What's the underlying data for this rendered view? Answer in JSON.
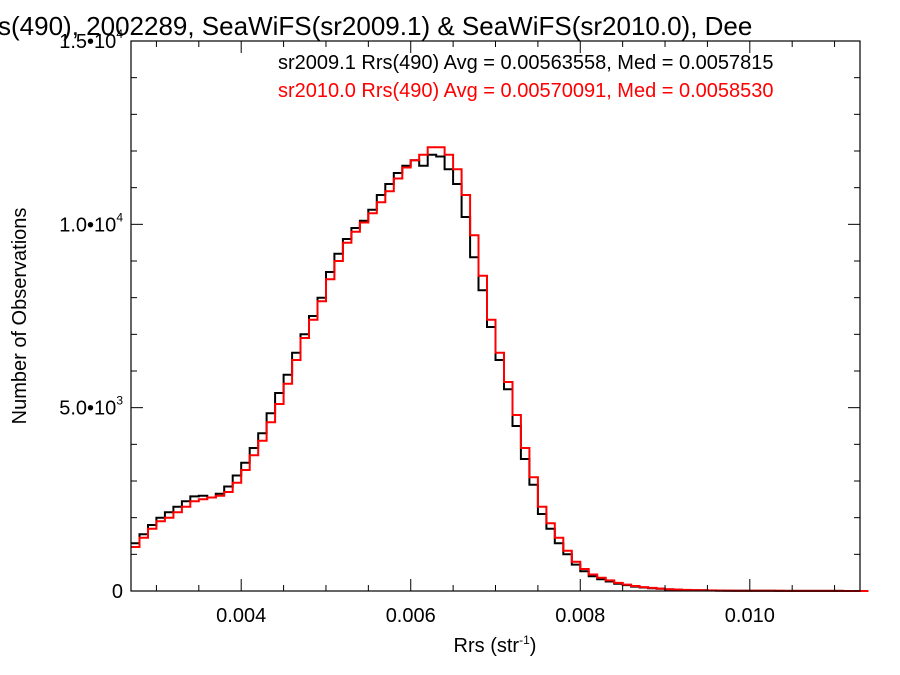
{
  "chart_data": {
    "type": "line",
    "title": "s(490), 2002289, SeaWiFS(sr2009.1) & SeaWiFS(sr2010.0), Dee",
    "xlabel": "Rrs (str",
    "xlabel_superscript": "-1",
    "xlabel_suffix": ")",
    "ylabel": "Number of Observations",
    "xlim": [
      0.0027,
      0.0113
    ],
    "ylim": [
      0,
      15000
    ],
    "xticks": [
      {
        "value": 0.004,
        "label": "0.004"
      },
      {
        "value": 0.006,
        "label": "0.006"
      },
      {
        "value": 0.008,
        "label": "0.008"
      },
      {
        "value": 0.01,
        "label": "0.010"
      }
    ],
    "yticks": [
      {
        "value": 0,
        "label": "0",
        "exp": ""
      },
      {
        "value": 5000,
        "label": "5.0•10",
        "exp": "3"
      },
      {
        "value": 10000,
        "label": "1.0•10",
        "exp": "4"
      },
      {
        "value": 15000,
        "label": "1.5•10",
        "exp": "4"
      }
    ],
    "grid": false,
    "series": [
      {
        "name": "sr2009.1 Rrs(490) Avg = 0.00563558, Med = 0.0057815",
        "color": "#000000",
        "x": [
          0.0027,
          0.0028,
          0.0029,
          0.003,
          0.0031,
          0.0032,
          0.0033,
          0.0034,
          0.0035,
          0.0036,
          0.0037,
          0.0038,
          0.0039,
          0.004,
          0.0041,
          0.0042,
          0.0043,
          0.0044,
          0.0045,
          0.0046,
          0.0047,
          0.0048,
          0.0049,
          0.005,
          0.0051,
          0.0052,
          0.0053,
          0.0054,
          0.0055,
          0.0056,
          0.0057,
          0.0058,
          0.0059,
          0.006,
          0.0061,
          0.0062,
          0.0063,
          0.0064,
          0.0065,
          0.0066,
          0.0067,
          0.0068,
          0.0069,
          0.007,
          0.0071,
          0.0072,
          0.0073,
          0.0074,
          0.0075,
          0.0076,
          0.0077,
          0.0078,
          0.0079,
          0.008,
          0.0081,
          0.0082,
          0.0083,
          0.0084,
          0.0085,
          0.0086,
          0.0087,
          0.0088,
          0.0089,
          0.009,
          0.0091,
          0.0092,
          0.0093,
          0.0094,
          0.0095,
          0.0096,
          0.0097,
          0.0098,
          0.0099,
          0.01,
          0.0101,
          0.0102,
          0.0103,
          0.0104,
          0.0105,
          0.0106,
          0.0107,
          0.0108,
          0.0109,
          0.011,
          0.0111,
          0.0112,
          0.0113
        ],
        "values": [
          1300,
          1550,
          1800,
          2000,
          2150,
          2300,
          2450,
          2580,
          2600,
          2550,
          2650,
          2850,
          3150,
          3500,
          3900,
          4300,
          4850,
          5400,
          5900,
          6500,
          7000,
          7500,
          8000,
          8700,
          9200,
          9600,
          9900,
          10100,
          10400,
          10800,
          11100,
          11400,
          11600,
          11750,
          11600,
          11900,
          11850,
          11500,
          11100,
          10200,
          9100,
          8200,
          7200,
          6300,
          5500,
          4500,
          3600,
          2900,
          2100,
          1700,
          1300,
          1000,
          720,
          540,
          400,
          320,
          260,
          200,
          160,
          120,
          95,
          75,
          60,
          45,
          35,
          28,
          22,
          18,
          14,
          11,
          9,
          8,
          7,
          6,
          5,
          5,
          4,
          4,
          3,
          3,
          2,
          2,
          2,
          2,
          1,
          1,
          0
        ]
      },
      {
        "name": "sr2010.0 Rrs(490) Avg = 0.00570091, Med = 0.0058530",
        "color": "#ff0000",
        "x": [
          0.0027,
          0.0028,
          0.0029,
          0.003,
          0.0031,
          0.0032,
          0.0033,
          0.0034,
          0.0035,
          0.0036,
          0.0037,
          0.0038,
          0.0039,
          0.004,
          0.0041,
          0.0042,
          0.0043,
          0.0044,
          0.0045,
          0.0046,
          0.0047,
          0.0048,
          0.0049,
          0.005,
          0.0051,
          0.0052,
          0.0053,
          0.0054,
          0.0055,
          0.0056,
          0.0057,
          0.0058,
          0.0059,
          0.006,
          0.0061,
          0.0062,
          0.0063,
          0.0064,
          0.0065,
          0.0066,
          0.0067,
          0.0068,
          0.0069,
          0.007,
          0.0071,
          0.0072,
          0.0073,
          0.0074,
          0.0075,
          0.0076,
          0.0077,
          0.0078,
          0.0079,
          0.008,
          0.0081,
          0.0082,
          0.0083,
          0.0084,
          0.0085,
          0.0086,
          0.0087,
          0.0088,
          0.0089,
          0.009,
          0.0091,
          0.0092,
          0.0093,
          0.0094,
          0.0095,
          0.0096,
          0.0097,
          0.0098,
          0.0099,
          0.01,
          0.0101,
          0.0102,
          0.0103,
          0.0104,
          0.0105,
          0.0106,
          0.0107,
          0.0108,
          0.0109,
          0.011,
          0.0111,
          0.0112,
          0.0113
        ],
        "values": [
          1200,
          1450,
          1700,
          1900,
          2000,
          2150,
          2300,
          2450,
          2500,
          2550,
          2600,
          2700,
          2950,
          3300,
          3700,
          4100,
          4600,
          5100,
          5650,
          6300,
          6900,
          7400,
          7900,
          8500,
          9000,
          9500,
          9800,
          10050,
          10300,
          10600,
          10900,
          11250,
          11550,
          11750,
          11900,
          12100,
          12100,
          11900,
          11500,
          10800,
          9700,
          8600,
          7400,
          6500,
          5700,
          4800,
          3900,
          3100,
          2300,
          1850,
          1450,
          1100,
          800,
          600,
          450,
          360,
          290,
          220,
          175,
          135,
          105,
          85,
          65,
          50,
          38,
          30,
          24,
          20,
          16,
          12,
          10,
          9,
          8,
          7,
          6,
          5,
          5,
          4,
          4,
          3,
          3,
          2,
          2,
          2,
          1,
          1,
          0
        ]
      }
    ]
  }
}
